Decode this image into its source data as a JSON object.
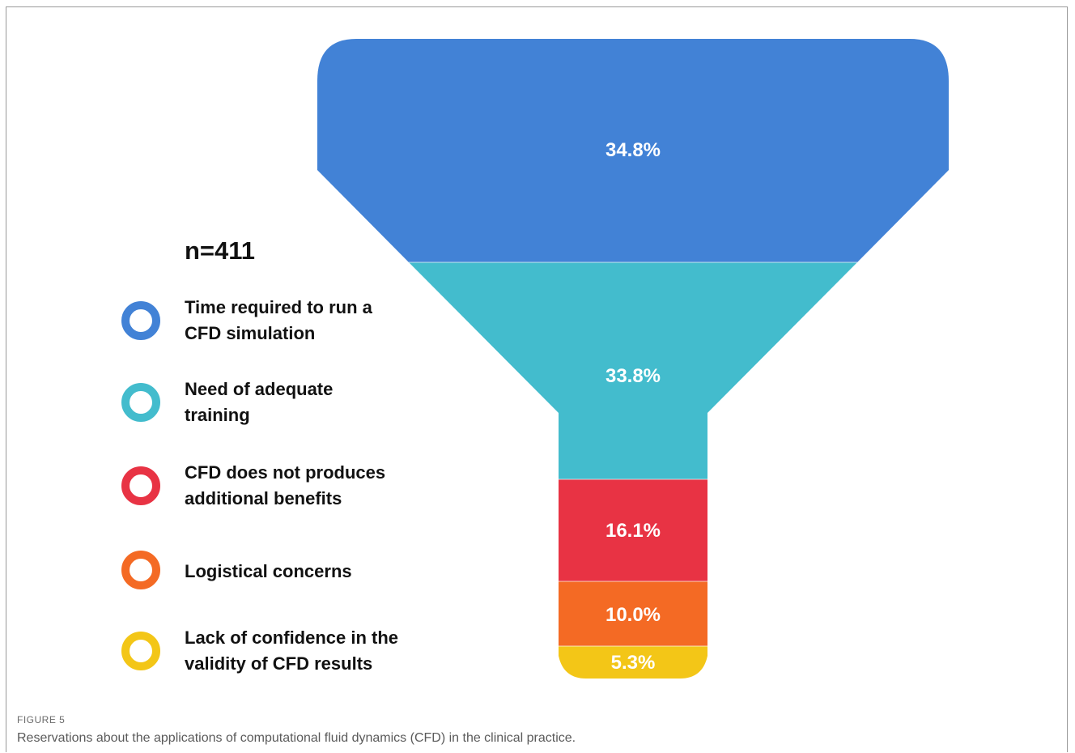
{
  "chart_data": {
    "type": "funnel",
    "sample_label": "n=411",
    "segments": [
      {
        "category": "Time required to run a\nCFD simulation",
        "value": 34.8,
        "value_label": "34.8%",
        "color": "#4282d6"
      },
      {
        "category": "Need of adequate\ntraining",
        "value": 33.8,
        "value_label": "33.8%",
        "color": "#43bccd"
      },
      {
        "category": "CFD does not produces\nadditional benefits",
        "value": 16.1,
        "value_label": "16.1%",
        "color": "#e83344"
      },
      {
        "category": "Logistical concerns",
        "value": 10.0,
        "value_label": "10.0%",
        "color": "#f46a24"
      },
      {
        "category": "Lack of confidence in the\nvalidity of CFD results",
        "value": 5.3,
        "value_label": "5.3%",
        "color": "#f3c617"
      }
    ]
  },
  "figure": {
    "number": "FIGURE 5",
    "caption": "Reservations about the applications of computational fluid dynamics (CFD) in the clinical practice."
  }
}
